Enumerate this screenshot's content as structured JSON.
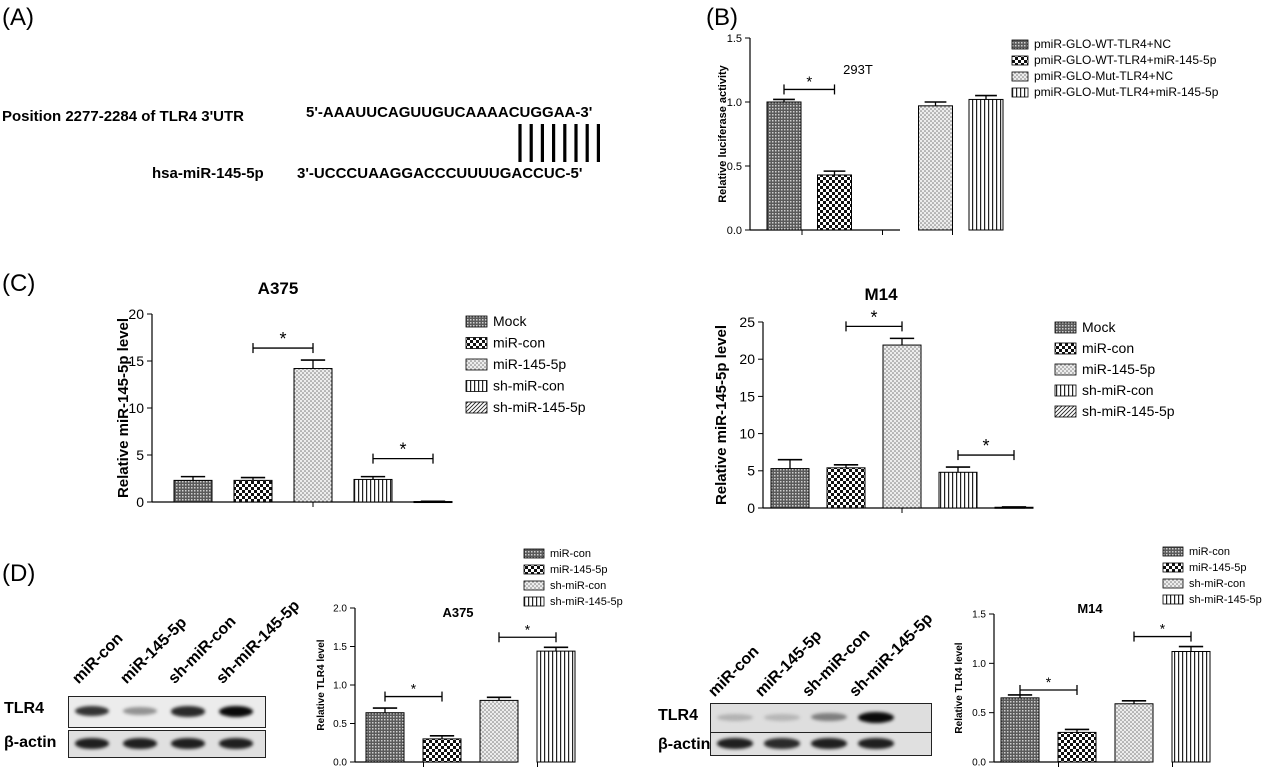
{
  "panels": {
    "A": {
      "label": "(A)",
      "position_text": "Position 2277-2284 of TLR4 3'UTR",
      "utr_seq": "5'-AAAUUCAGUUGUCAAAACUGGAA-3'",
      "mirna_name": "hsa-miR-145-5p",
      "mirna_seq": "3'-UCCCUAAGGACCCUUUUGACCUC-5'",
      "pair_count": 8
    },
    "B": {
      "label": "(B)"
    },
    "C": {
      "label": "(C)"
    },
    "D": {
      "label": "(D)"
    }
  },
  "blots": [
    {
      "id": "blot-a375",
      "lanes": [
        "miR-con",
        "miR-145-5p",
        "sh-miR-con",
        "sh-miR-145-5p"
      ],
      "rows": [
        "TLR4",
        "β-actin"
      ],
      "tlr4_intensity": [
        0.8,
        0.35,
        0.85,
        1.0
      ],
      "actin_intensity": [
        0.9,
        0.9,
        0.9,
        0.9
      ]
    },
    {
      "id": "blot-m14",
      "lanes": [
        "miR-con",
        "miR-145-5p",
        "sh-miR-con",
        "sh-miR-145-5p"
      ],
      "rows": [
        "TLR4",
        "β-actin"
      ],
      "tlr4_intensity": [
        0.2,
        0.18,
        0.45,
        1.0
      ],
      "actin_intensity": [
        0.9,
        0.85,
        0.9,
        0.9
      ]
    }
  ],
  "chart_data": [
    {
      "id": "B",
      "type": "bar",
      "title": "293T",
      "ylabel": "Relative luciferase activity",
      "ylim": [
        0,
        1.5
      ],
      "yticks": [
        0.0,
        0.5,
        1.0,
        1.5
      ],
      "bar_positions": [
        0,
        1,
        3,
        4
      ],
      "categories": [
        "pmiR-GLO-WT-TLR4+NC",
        "pmiR-GLO-WT-TLR4+miR-145-5p",
        "pmiR-GLO-Mut-TLR4+NC",
        "pmiR-GLO-Mut-TLR4+miR-145-5p"
      ],
      "values": [
        1.0,
        0.43,
        0.97,
        1.02
      ],
      "errors": [
        0.02,
        0.03,
        0.03,
        0.03
      ],
      "patterns": [
        "dense",
        "checker",
        "dots",
        "vlines"
      ],
      "significance": [
        {
          "from": 0,
          "to": 1,
          "label": "*"
        }
      ],
      "legend": [
        "pmiR-GLO-WT-TLR4+NC",
        "pmiR-GLO-WT-TLR4+miR-145-5p",
        "pmiR-GLO-Mut-TLR4+NC",
        "pmiR-GLO-Mut-TLR4+miR-145-5p"
      ],
      "legend_position": "top-right"
    },
    {
      "id": "C-A375",
      "type": "bar",
      "title": "A375",
      "ylabel": "Relative miR-145-5p level",
      "ylim": [
        0,
        20
      ],
      "yticks": [
        0,
        5,
        10,
        15,
        20
      ],
      "bar_positions": [
        0,
        1,
        2,
        3,
        4
      ],
      "categories": [
        "Mock",
        "miR-con",
        "miR-145-5p",
        "sh-miR-con",
        "sh-miR-145-5p"
      ],
      "values": [
        2.3,
        2.3,
        14.2,
        2.4,
        0.05
      ],
      "errors": [
        0.4,
        0.3,
        0.9,
        0.3,
        0.02
      ],
      "patterns": [
        "dense",
        "checker",
        "dots",
        "vlines",
        "diag"
      ],
      "significance": [
        {
          "from": 1,
          "to": 2,
          "label": "*"
        },
        {
          "from": 3,
          "to": 4,
          "label": "*"
        }
      ],
      "legend": [
        "Mock",
        "miR-con",
        "miR-145-5p",
        "sh-miR-con",
        "sh-miR-145-5p"
      ],
      "legend_position": "right"
    },
    {
      "id": "C-M14",
      "type": "bar",
      "title": "M14",
      "ylabel": "Relative miR-145-5p level",
      "ylim": [
        0,
        25
      ],
      "yticks": [
        0,
        5,
        10,
        15,
        20,
        25
      ],
      "bar_positions": [
        0,
        1,
        2,
        3,
        4
      ],
      "categories": [
        "Mock",
        "miR-con",
        "miR-145-5p",
        "sh-miR-con",
        "sh-miR-145-5p"
      ],
      "values": [
        5.3,
        5.4,
        21.9,
        4.8,
        0.1
      ],
      "errors": [
        1.2,
        0.4,
        0.9,
        0.7,
        0.05
      ],
      "patterns": [
        "dense",
        "checker",
        "dots",
        "vlines",
        "diag"
      ],
      "significance": [
        {
          "from": 1,
          "to": 2,
          "label": "*"
        },
        {
          "from": 3,
          "to": 4,
          "label": "*"
        }
      ],
      "legend": [
        "Mock",
        "miR-con",
        "miR-145-5p",
        "sh-miR-con",
        "sh-miR-145-5p"
      ],
      "legend_position": "right"
    },
    {
      "id": "D-A375",
      "type": "bar",
      "title": "A375",
      "ylabel": "Relative TLR4 level",
      "ylim": [
        0,
        2.0
      ],
      "yticks": [
        0.0,
        0.5,
        1.0,
        1.5,
        2.0
      ],
      "bar_positions": [
        0,
        1,
        2,
        3
      ],
      "categories": [
        "miR-con",
        "miR-145-5p",
        "sh-miR-con",
        "sh-miR-145-5p"
      ],
      "values": [
        0.64,
        0.3,
        0.8,
        1.44
      ],
      "errors": [
        0.06,
        0.04,
        0.04,
        0.05
      ],
      "patterns": [
        "dense",
        "checker",
        "dots",
        "vlines"
      ],
      "significance": [
        {
          "from": 0,
          "to": 1,
          "label": "*"
        },
        {
          "from": 2,
          "to": 3,
          "label": "*"
        }
      ],
      "legend": [
        "miR-con",
        "miR-145-5p",
        "sh-miR-con",
        "sh-miR-145-5p"
      ],
      "legend_position": "top-right"
    },
    {
      "id": "D-M14",
      "type": "bar",
      "title": "M14",
      "ylabel": "Relative TLR4 level",
      "ylim": [
        0,
        1.5
      ],
      "yticks": [
        0.0,
        0.5,
        1.0,
        1.5
      ],
      "bar_positions": [
        0,
        1,
        2,
        3
      ],
      "categories": [
        "miR-con",
        "miR-145-5p",
        "sh-miR-con",
        "sh-miR-145-5p"
      ],
      "values": [
        0.65,
        0.3,
        0.59,
        1.12
      ],
      "errors": [
        0.03,
        0.03,
        0.03,
        0.05
      ],
      "patterns": [
        "dense",
        "checker",
        "dots",
        "vlines"
      ],
      "significance": [
        {
          "from": 0,
          "to": 1,
          "label": "*"
        },
        {
          "from": 2,
          "to": 3,
          "label": "*"
        }
      ],
      "legend": [
        "miR-con",
        "miR-145-5p",
        "sh-miR-con",
        "sh-miR-145-5p"
      ],
      "legend_position": "top-right"
    }
  ]
}
